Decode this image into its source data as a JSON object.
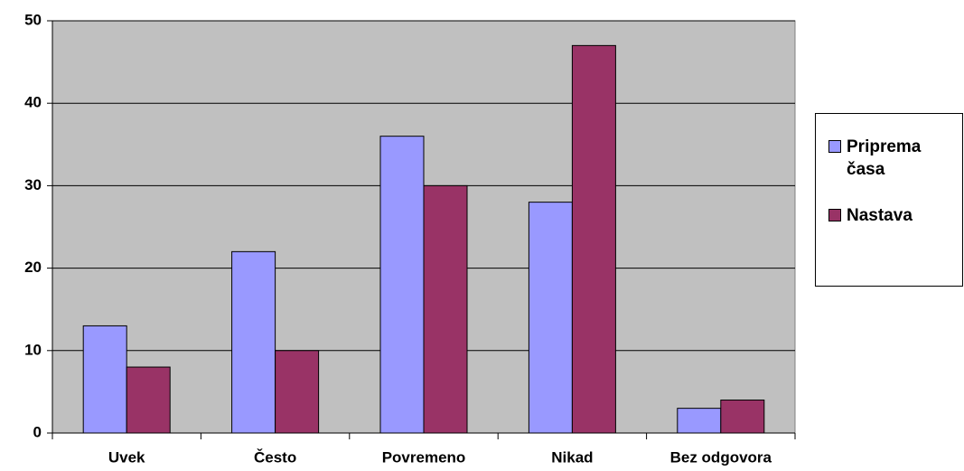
{
  "chart_data": {
    "type": "bar",
    "categories": [
      "Uvek",
      "Često",
      "Povremeno",
      "Nikad",
      "Bez odgovora"
    ],
    "series": [
      {
        "name": "Priprema časa",
        "color": "#9999ff",
        "values": [
          13,
          22,
          36,
          28,
          3
        ]
      },
      {
        "name": "Nastava",
        "color": "#993366",
        "values": [
          8,
          10,
          30,
          47,
          4
        ]
      }
    ],
    "ylim": [
      0,
      50
    ],
    "yticks": [
      0,
      10,
      20,
      30,
      40,
      50
    ],
    "grid": true,
    "legend": "right"
  }
}
